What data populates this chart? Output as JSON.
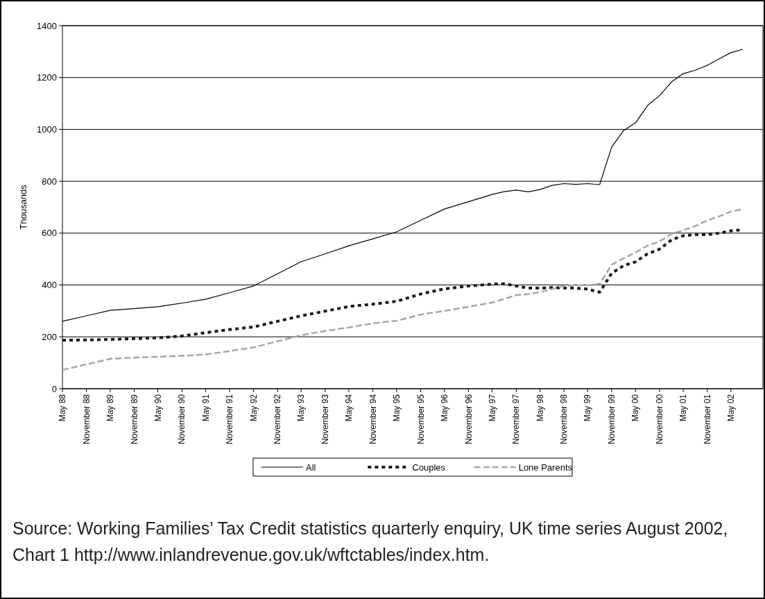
{
  "chart_data": {
    "type": "line",
    "ylabel": "Thousands",
    "x": [
      "1988-05",
      "1988-11",
      "1989-05",
      "1989-11",
      "1990-05",
      "1990-11",
      "1991-05",
      "1991-11",
      "1992-05",
      "1992-11",
      "1993-05",
      "1993-11",
      "1994-05",
      "1994-11",
      "1995-05",
      "1995-11",
      "1996-05",
      "1996-11",
      "1997-05",
      "1997-08",
      "1997-11",
      "1998-02",
      "1998-05",
      "1998-08",
      "1998-11",
      "1999-02",
      "1999-05",
      "1999-08",
      "1999-11",
      "2000-02",
      "2000-05",
      "2000-08",
      "2000-11",
      "2001-02",
      "2001-05",
      "2001-08",
      "2001-11",
      "2002-02",
      "2002-05",
      "2002-08"
    ],
    "series": [
      {
        "name": "All",
        "color": "#000000",
        "line_style": "solid",
        "values": [
          260,
          281,
          302,
          309,
          316,
          330,
          345,
          370,
          396,
          443,
          490,
          520,
          551,
          578,
          605,
          649,
          693,
          721,
          749,
          760,
          766,
          759,
          768,
          784,
          791,
          788,
          791,
          787,
          932,
          996,
          1025,
          1092,
          1130,
          1183,
          1215,
          1228,
          1247,
          1272,
          1296,
          1309
        ]
      },
      {
        "name": "Couples",
        "color": "#1a1a1a",
        "line_style": "dotted",
        "values": [
          187,
          188,
          190,
          193,
          196,
          203,
          216,
          228,
          238,
          260,
          281,
          299,
          317,
          326,
          337,
          365,
          385,
          396,
          403,
          405,
          396,
          388,
          388,
          390,
          388,
          388,
          384,
          372,
          445,
          475,
          489,
          520,
          538,
          574,
          590,
          594,
          594,
          600,
          609,
          613
        ]
      },
      {
        "name": "Lone Parents",
        "color": "#a6a6a6",
        "line_style": "dashed",
        "values": [
          72,
          94,
          115,
          120,
          123,
          127,
          132,
          145,
          159,
          183,
          206,
          223,
          236,
          252,
          262,
          286,
          300,
          316,
          332,
          346,
          361,
          365,
          372,
          384,
          396,
          399,
          399,
          404,
          478,
          503,
          525,
          552,
          568,
          597,
          611,
          627,
          649,
          665,
          683,
          693
        ]
      }
    ],
    "xlim": [
      "1988-05",
      "2003-01"
    ],
    "xticks": [
      {
        "value": "1988-05",
        "label": "May 88"
      },
      {
        "value": "1988-11",
        "label": "November 88"
      },
      {
        "value": "1989-05",
        "label": "May 89"
      },
      {
        "value": "1989-11",
        "label": "November 89"
      },
      {
        "value": "1990-05",
        "label": "May 90"
      },
      {
        "value": "1990-11",
        "label": "November 90"
      },
      {
        "value": "1991-05",
        "label": "May 91"
      },
      {
        "value": "1991-11",
        "label": "November 91"
      },
      {
        "value": "1992-05",
        "label": "May 92"
      },
      {
        "value": "1992-11",
        "label": "November 92"
      },
      {
        "value": "1993-05",
        "label": "May 93"
      },
      {
        "value": "1993-11",
        "label": "November 93"
      },
      {
        "value": "1994-05",
        "label": "May 94"
      },
      {
        "value": "1994-11",
        "label": "November 94"
      },
      {
        "value": "1995-05",
        "label": "May 95"
      },
      {
        "value": "1995-11",
        "label": "November 95"
      },
      {
        "value": "1996-05",
        "label": "May 96"
      },
      {
        "value": "1996-11",
        "label": "November 96"
      },
      {
        "value": "1997-05",
        "label": "May 97"
      },
      {
        "value": "1997-11",
        "label": "November 97"
      },
      {
        "value": "1998-05",
        "label": "May 98"
      },
      {
        "value": "1998-11",
        "label": "November 98"
      },
      {
        "value": "1999-05",
        "label": "May 99"
      },
      {
        "value": "1999-11",
        "label": "November 99"
      },
      {
        "value": "2000-05",
        "label": "May 00"
      },
      {
        "value": "2000-11",
        "label": "November 00"
      },
      {
        "value": "2001-05",
        "label": "May 01"
      },
      {
        "value": "2001-11",
        "label": "November 01"
      },
      {
        "value": "2002-05",
        "label": "May 02"
      }
    ],
    "ylim": [
      0,
      1400
    ],
    "yticks": [
      0,
      200,
      400,
      600,
      800,
      1000,
      1200,
      1400
    ],
    "grid": "y",
    "legend": "bottom",
    "marker": "none",
    "annotations": [
      "Source: Working Families’ Tax Credit statistics quarterly enquiry, UK time series August 2002, Chart 1 http://www.inlandrevenue.gov.uk/wftctables/index.htm."
    ]
  }
}
